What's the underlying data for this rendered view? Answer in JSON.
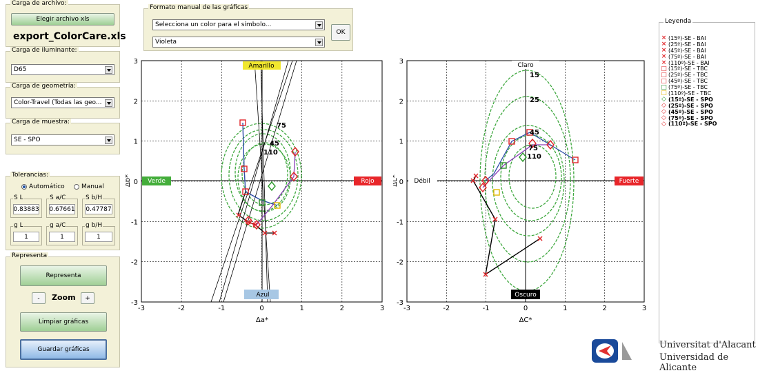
{
  "file_panel": {
    "title": "Carga de archivo:",
    "button": "Elegir archivo xls",
    "filename": "export_ColorCare.xls"
  },
  "illuminant": {
    "title": "Carga de iluminante:",
    "value": "D65"
  },
  "geometry": {
    "title": "Carga de geometría:",
    "value": "Color-Travel (Todas las geo..."
  },
  "sample": {
    "title": "Carga de muestra:",
    "value": "SE - SPO"
  },
  "format": {
    "title": "Formato manual de las gráficas",
    "symbol_select": "Selecciona un color para el símbolo...",
    "color_select": "Violeta",
    "ok": "OK"
  },
  "tolerances": {
    "title": "Tolerancias:",
    "radio_auto": "Automático",
    "radio_manual": "Manual",
    "boxes": [
      {
        "label": "S L",
        "value": "0.83883"
      },
      {
        "label": "S a/C",
        "value": "0.67661"
      },
      {
        "label": "S b/H",
        "value": "0.47787"
      },
      {
        "label": "g L",
        "value": "1"
      },
      {
        "label": "g a/C",
        "value": "1"
      },
      {
        "label": "g b/H",
        "value": "1"
      }
    ]
  },
  "represent": {
    "title": "Representa",
    "btn": "Representa",
    "zoom_minus": "-",
    "zoom_label": "Zoom",
    "zoom_plus": "+",
    "clear": "Limpiar gráficas",
    "save": "Guardar gráficas"
  },
  "plot_left": {
    "xlabel": "Δa*",
    "ylabel": "Δb*",
    "xticks": [
      "-3",
      "-2",
      "-1",
      "0",
      "1",
      "2",
      "3"
    ],
    "yticks": [
      "3",
      "2",
      "1",
      "0",
      "-1",
      "-2",
      "-3"
    ],
    "top_label": "Amarillo",
    "bottom_label": "Azul",
    "left_label": "Verde",
    "right_label": "Rojo",
    "ellipse_labels": [
      "75",
      "45",
      "110"
    ]
  },
  "plot_right": {
    "xlabel": "ΔC*",
    "ylabel": "ΔL*",
    "xticks": [
      "-3",
      "-2",
      "-1",
      "0",
      "1",
      "2",
      "3"
    ],
    "yticks": [
      "3",
      "2",
      "1",
      "0",
      "-1",
      "-2",
      "-3"
    ],
    "top_label": "Claro",
    "bottom_label": "Oscuro",
    "left_label": "Débil",
    "right_label": "Fuerte",
    "ellipse_labels": [
      "15",
      "25",
      "45",
      "75",
      "110"
    ]
  },
  "legend": {
    "title": "Leyenda",
    "items": [
      {
        "label": "(15º)-SE - BAI",
        "symbol": "×",
        "color": "#e0262a",
        "bold": false
      },
      {
        "label": "(25º)-SE - BAI",
        "symbol": "×",
        "color": "#e0262a",
        "bold": false
      },
      {
        "label": "(45º)-SE - BAI",
        "symbol": "×",
        "color": "#e0262a",
        "bold": false
      },
      {
        "label": "(75º)-SE - BAI",
        "symbol": "×",
        "color": "#e0262a",
        "bold": false
      },
      {
        "label": "(110º)-SE - BAI",
        "symbol": "×",
        "color": "#e0262a",
        "bold": false
      },
      {
        "label": "(15º)-SE - TBC",
        "symbol": "□",
        "color": "#e0262a",
        "bold": false
      },
      {
        "label": "(25º)-SE - TBC",
        "symbol": "□",
        "color": "#e0262a",
        "bold": false
      },
      {
        "label": "(45º)-SE - TBC",
        "symbol": "□",
        "color": "#e0262a",
        "bold": false
      },
      {
        "label": "(75º)-SE - TBC",
        "symbol": "□",
        "color": "#2a8a2a",
        "bold": false
      },
      {
        "label": "(110º)-SE - TBC",
        "symbol": "□",
        "color": "#e0b800",
        "bold": false
      },
      {
        "label": "(15º)-SE - SPO",
        "symbol": "◇",
        "color": "#2a9a2a",
        "bold": true
      },
      {
        "label": "(25º)-SE - SPO",
        "symbol": "◇",
        "color": "#e0262a",
        "bold": true
      },
      {
        "label": "(45º)-SE - SPO",
        "symbol": "◇",
        "color": "#e0262a",
        "bold": true
      },
      {
        "label": "(75º)-SE - SPO",
        "symbol": "◇",
        "color": "#e0262a",
        "bold": true
      },
      {
        "label": "(110º)-SE - SPO",
        "symbol": "◇",
        "color": "#e0262a",
        "bold": true
      }
    ]
  },
  "university": {
    "line1": "Universitat d'Alacant",
    "line2": "Universidad de Alicante"
  }
}
